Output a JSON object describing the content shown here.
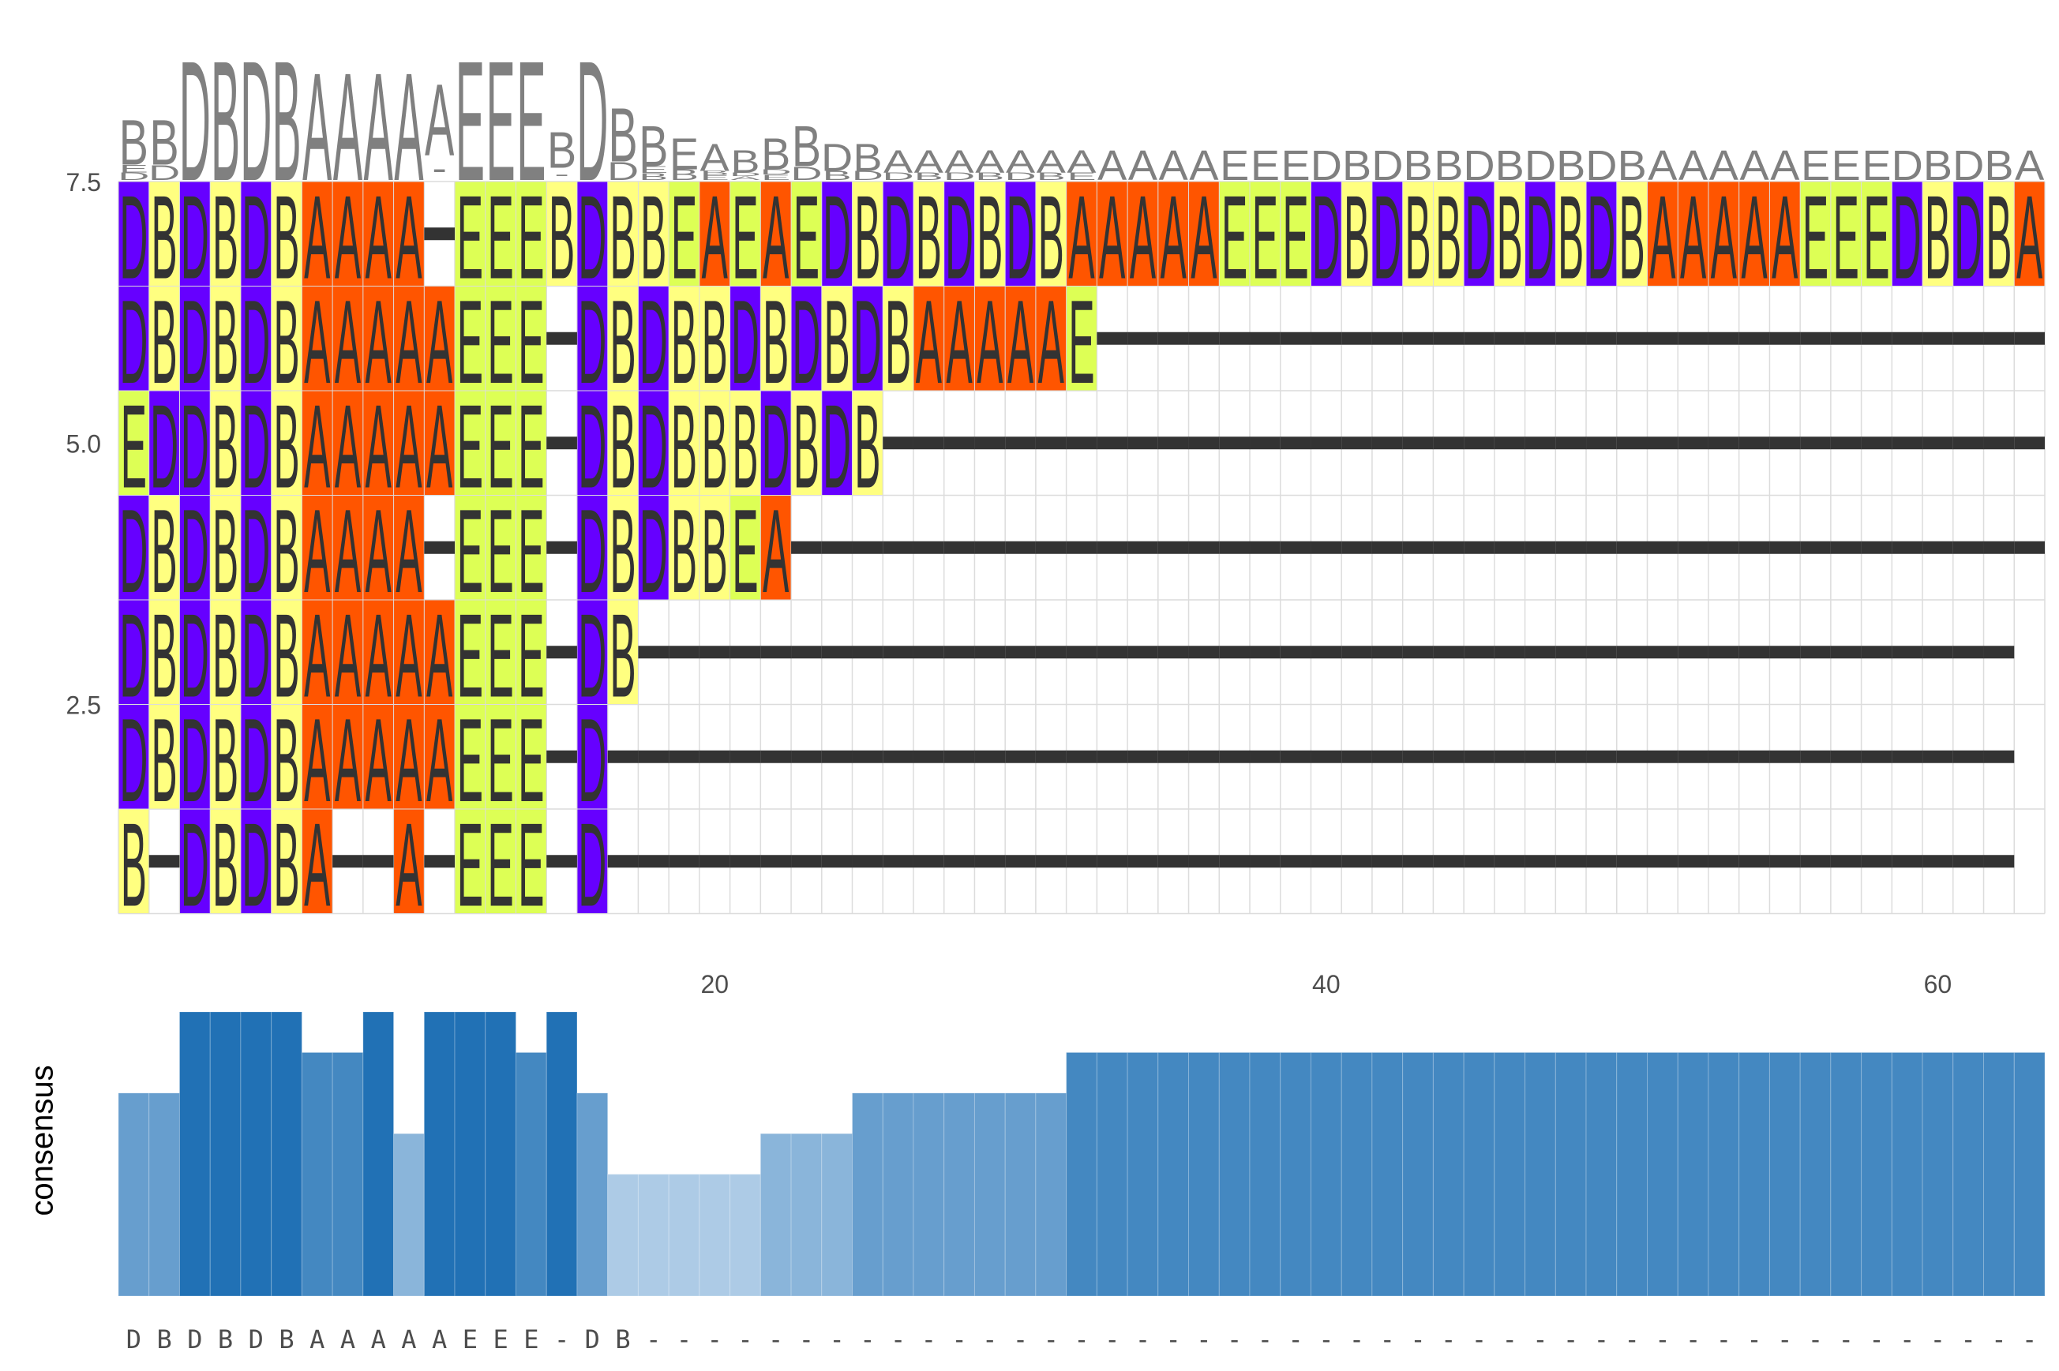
{
  "chart_data": [
    {
      "type": "sequence-logo",
      "series_positions": 63,
      "residue_colors": {
        "A": "#FF5500",
        "B": "#FFFF80",
        "D": "#6600FF",
        "E": "#DDFF55",
        "-": "#333333"
      },
      "logo_color": "#808080",
      "logo_stacks": [
        [
          "B",
          "E",
          "D"
        ],
        [
          "B",
          "D"
        ],
        [
          "D"
        ],
        [
          "B"
        ],
        [
          "D"
        ],
        [
          "B"
        ],
        [
          "A"
        ],
        [
          "A"
        ],
        [
          "A"
        ],
        [
          "A"
        ],
        [
          "A",
          "-"
        ],
        [
          "E"
        ],
        [
          "E"
        ],
        [
          "E"
        ],
        [
          "B",
          "-"
        ],
        [
          "D"
        ],
        [
          "B",
          "D"
        ],
        [
          "B",
          "E",
          "B"
        ],
        [
          "E",
          "B"
        ],
        [
          "A",
          "B",
          "E"
        ],
        [
          "B",
          "D",
          "A"
        ],
        [
          "B",
          "D",
          "E"
        ],
        [
          "B",
          "D"
        ],
        [
          "D",
          "B"
        ],
        [
          "B",
          "D"
        ],
        [
          "A",
          "D"
        ],
        [
          "A",
          "B"
        ],
        [
          "A",
          "D"
        ],
        [
          "A",
          "B"
        ],
        [
          "A",
          "D"
        ],
        [
          "A",
          "B"
        ],
        [
          "A",
          "E"
        ],
        [
          "A"
        ],
        [
          "A"
        ],
        [
          "A"
        ],
        [
          "A"
        ],
        [
          "E"
        ],
        [
          "E"
        ],
        [
          "E"
        ],
        [
          "D"
        ],
        [
          "B"
        ],
        [
          "D"
        ],
        [
          "B"
        ],
        [
          "B"
        ],
        [
          "D"
        ],
        [
          "B"
        ],
        [
          "D"
        ],
        [
          "B"
        ],
        [
          "D"
        ],
        [
          "B"
        ],
        [
          "A"
        ],
        [
          "A"
        ],
        [
          "A"
        ],
        [
          "A"
        ],
        [
          "A"
        ],
        [
          "E"
        ],
        [
          "E"
        ],
        [
          "E"
        ],
        [
          "D"
        ],
        [
          "B"
        ],
        [
          "D"
        ],
        [
          "B"
        ],
        [
          "A"
        ]
      ],
      "logo_heights": [
        0.5,
        0.5,
        1,
        1,
        1,
        1,
        0.9,
        0.9,
        0.9,
        0.9,
        0.8,
        1,
        1,
        1,
        0.4,
        1,
        0.6,
        0.45,
        0.35,
        0.3,
        0.25,
        0.35,
        0.45,
        0.3,
        0.3,
        0.25,
        0.25,
        0.25,
        0.25,
        0.25,
        0.25,
        0.25,
        0.25,
        0.25,
        0.25,
        0.25,
        0.25,
        0.25,
        0.25,
        0.25,
        0.25,
        0.25,
        0.25,
        0.25,
        0.25,
        0.25,
        0.25,
        0.25,
        0.25,
        0.25,
        0.25,
        0.25,
        0.25,
        0.25,
        0.25,
        0.25,
        0.25,
        0.25,
        0.25,
        0.25,
        0.25,
        0.25,
        0.25
      ]
    },
    {
      "type": "heatmap",
      "title": "",
      "yticks": [
        "2.5",
        "5.0",
        "7.5"
      ],
      "ylim": [
        0.5,
        7.5
      ],
      "rows": [
        "DBDBDBAAAA-EEEBDBBEAEAEDBDBDBDBAAAAAEEEDBDBBDBDBDBAAAAAEEEDBDBA",
        "DBDBDBAAAAAEEE-DBDBBDBDBDBAAAAAE-------------------------------",
        "EDDBDBAAAAAEEE-DBDBBBDBDB--------------------------------------",
        "DBDBDBAAAA-EEE-DBDBBEA-----------------------------------------",
        "DBDBDBAAAAAEEE-DB---------------------------------------------",
        "DBDBDBAAAAAEEE-D----------------------------------------------",
        "B-DBDBA--A-EEE-D----------------------------------------------"
      ],
      "xticks": [
        20,
        40,
        60
      ],
      "xlim": [
        0.5,
        63.5
      ]
    },
    {
      "type": "bar",
      "ylabel": "consensus",
      "consensus": [
        "D",
        "B",
        "D",
        "B",
        "D",
        "B",
        "A",
        "A",
        "A",
        "A",
        "A",
        "E",
        "E",
        "E",
        "-",
        "D",
        "B",
        "-",
        "-",
        "-",
        "-",
        "-",
        "-",
        "-",
        "-",
        "-",
        "-",
        "-",
        "-",
        "-",
        "-",
        "-",
        "-",
        "-",
        "-",
        "-",
        "-",
        "-",
        "-",
        "-",
        "-",
        "-",
        "-",
        "-",
        "-",
        "-",
        "-",
        "-",
        "-",
        "-",
        "-",
        "-",
        "-",
        "-",
        "-",
        "-",
        "-",
        "-",
        "-",
        "-",
        "-",
        "-",
        "-"
      ],
      "values": [
        5,
        5,
        7,
        7,
        7,
        7,
        6,
        6,
        7,
        4,
        7,
        7,
        7,
        6,
        7,
        5,
        3,
        3,
        3,
        3,
        3,
        4,
        4,
        4,
        5,
        5,
        5,
        5,
        5,
        5,
        5,
        6,
        6,
        6,
        6,
        6,
        6,
        6,
        6,
        6,
        6,
        6,
        6,
        6,
        6,
        6,
        6,
        6,
        6,
        6,
        6,
        6,
        6,
        6,
        6,
        6,
        6,
        6,
        6,
        6,
        6,
        6,
        6
      ],
      "ylim": [
        0,
        7
      ],
      "color_scale": {
        "low": "#c6dbef",
        "high": "#2171b5"
      }
    }
  ]
}
